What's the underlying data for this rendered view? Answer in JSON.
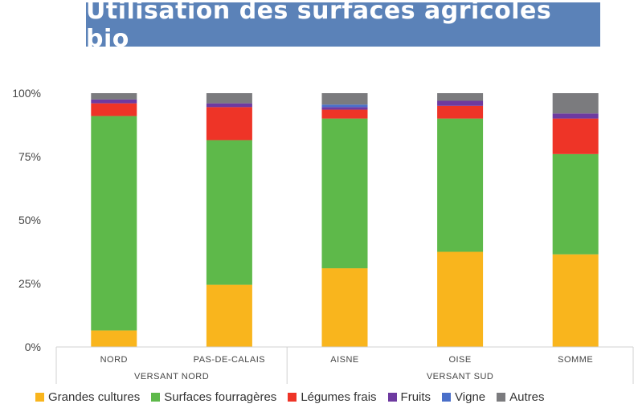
{
  "title": "Utilisation des surfaces agricoles bio",
  "chart_data": {
    "type": "bar",
    "stacked": true,
    "percent_stacked": true,
    "ylim": [
      0,
      100
    ],
    "yticks": [
      "0%",
      "25%",
      "50%",
      "75%",
      "100%"
    ],
    "categories": [
      "NORD",
      "PAS-DE-CALAIS",
      "AISNE",
      "OISE",
      "SOMME"
    ],
    "groups": [
      {
        "label": "VERSANT NORD",
        "categories": [
          "NORD",
          "PAS-DE-CALAIS"
        ]
      },
      {
        "label": "VERSANT SUD",
        "categories": [
          "AISNE",
          "OISE",
          "SOMME"
        ]
      }
    ],
    "series": [
      {
        "name": "Grandes cultures",
        "color": "#f9b51d",
        "values": [
          6.5,
          24.5,
          31,
          37.5,
          36.5
        ]
      },
      {
        "name": "Surfaces fourragères",
        "color": "#5eb94a",
        "values": [
          84.5,
          57,
          59,
          52.5,
          39.5
        ]
      },
      {
        "name": "Légumes frais",
        "color": "#ee3427",
        "values": [
          5,
          13,
          3.5,
          5,
          14
        ]
      },
      {
        "name": "Fruits",
        "color": "#6e3aa0",
        "values": [
          1.5,
          1.5,
          1,
          2,
          2
        ]
      },
      {
        "name": "Vigne",
        "color": "#4a6fc9",
        "values": [
          0,
          0,
          1,
          0,
          0
        ]
      },
      {
        "name": "Autres",
        "color": "#7b7b7e",
        "values": [
          2.5,
          4,
          4.5,
          3,
          8
        ]
      }
    ],
    "legend_position": "bottom",
    "grid": false
  }
}
